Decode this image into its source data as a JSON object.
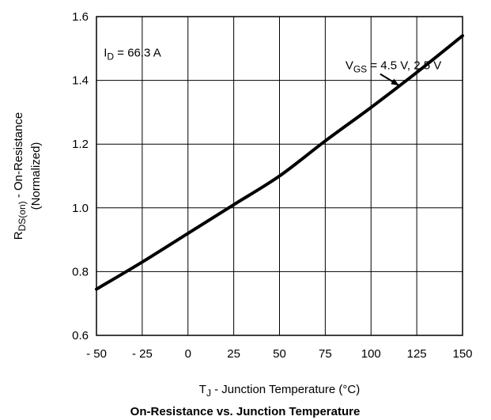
{
  "chart_data": {
    "type": "line",
    "title": "On-Resistance vs. Junction Temperature",
    "xlabel": {
      "main": "T",
      "sub": "J",
      "rest": " - Junction Temperature (°C)"
    },
    "ylabel": {
      "line1_main": "R",
      "line1_sub": "DS(on)",
      "line1_rest": " - On-Resistance",
      "line2": "(Normalized)"
    },
    "xlim": [
      -50,
      150
    ],
    "ylim": [
      0.6,
      1.6
    ],
    "x_ticks": [
      -50,
      -25,
      0,
      25,
      50,
      75,
      100,
      125,
      150
    ],
    "x_tick_labels": [
      "- 50",
      "- 25",
      "0",
      "25",
      "50",
      "75",
      "100",
      "125",
      "150"
    ],
    "y_ticks": [
      0.6,
      0.8,
      1.0,
      1.2,
      1.4,
      1.6
    ],
    "y_tick_labels": [
      "0.6",
      "0.8",
      "1.0",
      "1.2",
      "1.4",
      "1.6"
    ],
    "grid": true,
    "series": [
      {
        "x": [
          -50,
          -25,
          0,
          25,
          50,
          75,
          100,
          125,
          150
        ],
        "y": [
          0.745,
          0.83,
          0.92,
          1.01,
          1.1,
          1.21,
          1.315,
          1.425,
          1.54
        ]
      }
    ],
    "annotations": [
      {
        "id": "id-current",
        "main": "I",
        "sub": "D",
        "rest": " = 66.3 A",
        "x": -46,
        "y": 1.475
      },
      {
        "id": "vgs",
        "main": "V",
        "sub": "GS",
        "rest": " = 4.5 V, 2.5 V",
        "x": 86,
        "y": 1.435,
        "arrow_from": [
          105,
          1.42
        ],
        "arrow_to": [
          115,
          1.385
        ]
      }
    ],
    "colors": {
      "line": "#000000",
      "grid": "#000000",
      "background": "#ffffff"
    }
  }
}
